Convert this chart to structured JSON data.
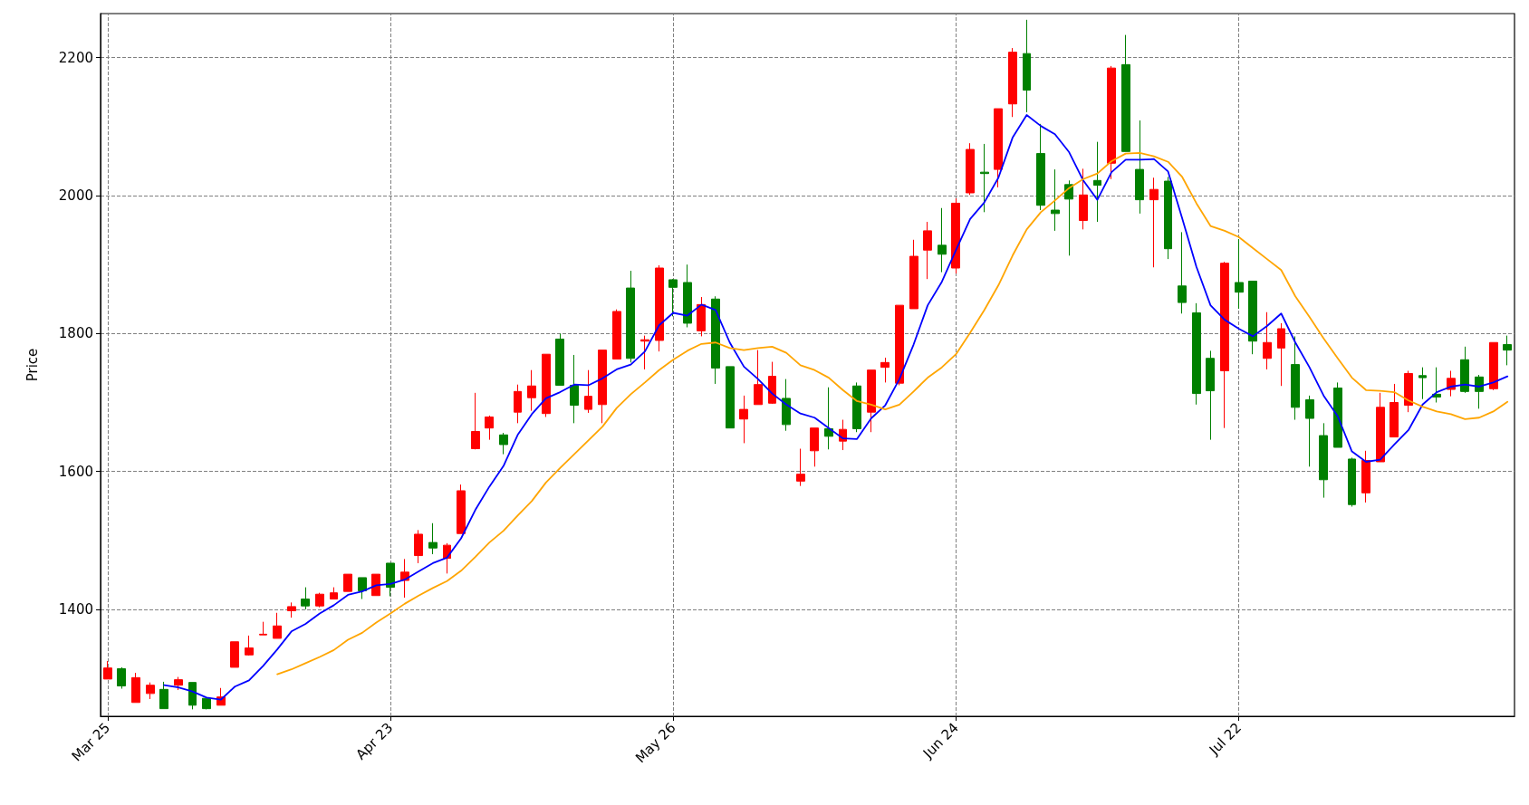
{
  "chart_data": {
    "type": "candlestick",
    "ylabel": "Price",
    "categories": [
      "Mar 25",
      null,
      null,
      null,
      null,
      null,
      null,
      null,
      null,
      null,
      null,
      null,
      null,
      null,
      null,
      null,
      null,
      null,
      null,
      null,
      "Apr 23",
      null,
      null,
      null,
      null,
      null,
      null,
      null,
      null,
      null,
      null,
      null,
      null,
      null,
      null,
      null,
      null,
      null,
      null,
      null,
      "May 26",
      null,
      null,
      null,
      null,
      null,
      null,
      null,
      null,
      null,
      null,
      null,
      null,
      null,
      null,
      null,
      null,
      null,
      null,
      null,
      "Jun 24",
      null,
      null,
      null,
      null,
      null,
      null,
      null,
      null,
      null,
      null,
      null,
      null,
      null,
      null,
      null,
      null,
      null,
      null,
      null,
      "Jul 22",
      null,
      null,
      null,
      null,
      null,
      null,
      null,
      null,
      null,
      null,
      null,
      null,
      null,
      null,
      null,
      null,
      null,
      null,
      null
    ],
    "ohlc": [
      [
        1299,
        1325,
        1299,
        1315
      ],
      [
        1314,
        1316,
        1285,
        1289
      ],
      [
        1265,
        1308,
        1265,
        1301
      ],
      [
        1278,
        1294,
        1270,
        1290
      ],
      [
        1284,
        1295,
        1256,
        1256
      ],
      [
        1290,
        1302,
        1283,
        1298
      ],
      [
        1294,
        1294,
        1255,
        1261
      ],
      [
        1271,
        1271,
        1255,
        1256
      ],
      [
        1261,
        1286,
        1261,
        1273
      ],
      [
        1316,
        1353,
        1316,
        1353
      ],
      [
        1334,
        1362,
        1333,
        1344
      ],
      [
        1363,
        1382,
        1363,
        1364
      ],
      [
        1358,
        1395,
        1358,
        1376
      ],
      [
        1398,
        1410,
        1388,
        1404
      ],
      [
        1415,
        1432,
        1400,
        1405
      ],
      [
        1405,
        1424,
        1403,
        1422
      ],
      [
        1415,
        1432,
        1415,
        1424
      ],
      [
        1426,
        1451,
        1426,
        1451
      ],
      [
        1446,
        1446,
        1415,
        1427
      ],
      [
        1420,
        1451,
        1420,
        1451
      ],
      [
        1467,
        1467,
        1419,
        1432
      ],
      [
        1442,
        1473,
        1417,
        1454
      ],
      [
        1478,
        1515,
        1467,
        1509
      ],
      [
        1497,
        1525,
        1480,
        1489
      ],
      [
        1474,
        1496,
        1452,
        1493
      ],
      [
        1510,
        1581,
        1510,
        1572
      ],
      [
        1633,
        1714,
        1632,
        1658
      ],
      [
        1663,
        1681,
        1646,
        1679
      ],
      [
        1653,
        1656,
        1625,
        1639
      ],
      [
        1686,
        1726,
        1670,
        1716
      ],
      [
        1707,
        1747,
        1688,
        1724
      ],
      [
        1684,
        1770,
        1679,
        1770
      ],
      [
        1792,
        1800,
        1725,
        1725
      ],
      [
        1725,
        1769,
        1670,
        1696
      ],
      [
        1690,
        1747,
        1685,
        1709
      ],
      [
        1697,
        1776,
        1670,
        1776
      ],
      [
        1763,
        1835,
        1763,
        1832
      ],
      [
        1866,
        1891,
        1758,
        1764
      ],
      [
        1789,
        1797,
        1748,
        1791
      ],
      [
        1790,
        1899,
        1774,
        1895
      ],
      [
        1878,
        1879,
        1825,
        1867
      ],
      [
        1874,
        1900,
        1809,
        1815
      ],
      [
        1804,
        1853,
        1796,
        1842
      ],
      [
        1850,
        1854,
        1727,
        1750
      ],
      [
        1752,
        1752,
        1663,
        1663
      ],
      [
        1676,
        1710,
        1641,
        1690
      ],
      [
        1697,
        1776,
        1697,
        1726
      ],
      [
        1699,
        1759,
        1698,
        1738
      ],
      [
        1706,
        1734,
        1659,
        1668
      ],
      [
        1586,
        1633,
        1579,
        1596
      ],
      [
        1630,
        1663,
        1607,
        1663
      ],
      [
        1662,
        1722,
        1632,
        1651
      ],
      [
        1644,
        1675,
        1631,
        1661
      ],
      [
        1724,
        1729,
        1657,
        1662
      ],
      [
        1686,
        1747,
        1657,
        1747
      ],
      [
        1751,
        1765,
        1729,
        1758
      ],
      [
        1728,
        1841,
        1725,
        1841
      ],
      [
        1836,
        1936,
        1836,
        1912
      ],
      [
        1921,
        1962,
        1879,
        1949
      ],
      [
        1928,
        1982,
        1889,
        1915
      ],
      [
        1895,
        1996,
        1887,
        1989
      ],
      [
        2004,
        2076,
        2001,
        2067
      ],
      [
        2034,
        2075,
        1976,
        2032
      ],
      [
        2038,
        2126,
        2012,
        2126
      ],
      [
        2133,
        2214,
        2114,
        2208
      ],
      [
        2206,
        2255,
        2121,
        2153
      ],
      [
        2061,
        2104,
        1979,
        1986
      ],
      [
        1979,
        2038,
        1949,
        1974
      ],
      [
        2016,
        2022,
        1913,
        1995
      ],
      [
        1964,
        2039,
        1951,
        2001
      ],
      [
        2022,
        2078,
        1962,
        2015
      ],
      [
        2047,
        2188,
        2024,
        2185
      ],
      [
        2190,
        2233,
        2064,
        2064
      ],
      [
        2038,
        2109,
        1974,
        1994
      ],
      [
        1994,
        2026,
        1896,
        2009
      ],
      [
        2021,
        2027,
        1908,
        1923
      ],
      [
        1869,
        1947,
        1829,
        1845
      ],
      [
        1830,
        1844,
        1697,
        1713
      ],
      [
        1764,
        1775,
        1646,
        1717
      ],
      [
        1746,
        1904,
        1663,
        1902
      ],
      [
        1874,
        1937,
        1836,
        1860
      ],
      [
        1876,
        1876,
        1770,
        1789
      ],
      [
        1764,
        1831,
        1748,
        1787
      ],
      [
        1779,
        1815,
        1724,
        1807
      ],
      [
        1755,
        1796,
        1675,
        1693
      ],
      [
        1704,
        1710,
        1607,
        1677
      ],
      [
        1652,
        1670,
        1562,
        1588
      ],
      [
        1721,
        1729,
        1635,
        1635
      ],
      [
        1618,
        1620,
        1549,
        1552
      ],
      [
        1569,
        1630,
        1555,
        1616
      ],
      [
        1614,
        1714,
        1614,
        1693
      ],
      [
        1650,
        1727,
        1650,
        1700
      ],
      [
        1696,
        1746,
        1686,
        1742
      ],
      [
        1739,
        1751,
        1705,
        1736
      ],
      [
        1712,
        1751,
        1700,
        1708
      ],
      [
        1719,
        1746,
        1709,
        1735
      ],
      [
        1762,
        1781,
        1714,
        1716
      ],
      [
        1737,
        1740,
        1691,
        1716
      ],
      [
        1720,
        1787,
        1718,
        1787
      ],
      [
        1784,
        1797,
        1754,
        1776
      ]
    ],
    "colors": [
      "#ff0000",
      "#008000",
      "#ff0000",
      "#ff0000",
      "#008000",
      "#ff0000",
      "#008000",
      "#008000",
      "#ff0000",
      "#ff0000",
      "#ff0000",
      "#ff0000",
      "#ff0000",
      "#ff0000",
      "#008000",
      "#ff0000",
      "#ff0000",
      "#ff0000",
      "#008000",
      "#ff0000",
      "#008000",
      "#ff0000",
      "#ff0000",
      "#008000",
      "#ff0000",
      "#ff0000",
      "#ff0000",
      "#ff0000",
      "#008000",
      "#ff0000",
      "#ff0000",
      "#ff0000",
      "#008000",
      "#008000",
      "#ff0000",
      "#ff0000",
      "#ff0000",
      "#008000",
      "#ff0000",
      "#ff0000",
      "#008000",
      "#008000",
      "#ff0000",
      "#008000",
      "#008000",
      "#ff0000",
      "#ff0000",
      "#ff0000",
      "#008000",
      "#ff0000",
      "#ff0000",
      "#008000",
      "#ff0000",
      "#008000",
      "#ff0000",
      "#ff0000",
      "#ff0000",
      "#ff0000",
      "#ff0000",
      "#008000",
      "#ff0000",
      "#ff0000",
      "#008000",
      "#ff0000",
      "#ff0000",
      "#008000",
      "#008000",
      "#008000",
      "#008000",
      "#ff0000",
      "#008000",
      "#ff0000",
      "#008000",
      "#008000",
      "#ff0000",
      "#008000",
      "#008000",
      "#008000",
      "#008000",
      "#ff0000",
      "#008000",
      "#008000",
      "#ff0000",
      "#ff0000",
      "#008000",
      "#008000",
      "#008000",
      "#008000",
      "#008000",
      "#ff0000",
      "#ff0000",
      "#ff0000",
      "#ff0000",
      "#008000",
      "#008000",
      "#ff0000",
      "#008000",
      "#008000",
      "#ff0000",
      "#008000"
    ],
    "series": [
      {
        "type": "line",
        "color": "#0000ff",
        "values": [
          null,
          null,
          null,
          null,
          1290,
          1287,
          1281,
          1272,
          1269,
          1288,
          1297,
          1318,
          1342,
          1368,
          1379,
          1394,
          1406,
          1421,
          1426,
          1435,
          1437,
          1443,
          1455,
          1467,
          1475,
          1503,
          1544,
          1578,
          1608,
          1653,
          1683,
          1706,
          1715,
          1726,
          1725,
          1735,
          1748,
          1755,
          1774,
          1812,
          1830,
          1826,
          1842,
          1834,
          1787,
          1752,
          1734,
          1713,
          1697,
          1684,
          1678,
          1663,
          1648,
          1647,
          1677,
          1696,
          1734,
          1784,
          1841,
          1875,
          1921,
          1966,
          1990,
          2026,
          2084,
          2117,
          2101,
          2089,
          2063,
          2022,
          1994,
          2034,
          2052,
          2052,
          2053,
          2035,
          1967,
          1897,
          1841,
          1820,
          1807,
          1796,
          1811,
          1829,
          1787,
          1751,
          1710,
          1680,
          1629,
          1614,
          1617,
          1639,
          1660,
          1697,
          1715,
          1723,
          1726,
          1723,
          1729,
          1738
        ]
      },
      {
        "type": "line",
        "color": "#ffa500",
        "values": [
          null,
          null,
          null,
          null,
          null,
          null,
          null,
          null,
          null,
          null,
          null,
          null,
          1306,
          1313,
          1322,
          1331,
          1341,
          1356,
          1366,
          1381,
          1394,
          1408,
          1420,
          1431,
          1441,
          1456,
          1476,
          1497,
          1514,
          1536,
          1557,
          1584,
          1605,
          1625,
          1645,
          1665,
          1692,
          1712,
          1729,
          1747,
          1762,
          1775,
          1785,
          1787,
          1779,
          1776,
          1779,
          1781,
          1772,
          1754,
          1747,
          1736,
          1718,
          1702,
          1697,
          1690,
          1697,
          1716,
          1736,
          1751,
          1770,
          1801,
          1834,
          1870,
          1913,
          1951,
          1976,
          1993,
          2011,
          2024,
          2032,
          2050,
          2061,
          2062,
          2057,
          2049,
          2027,
          1989,
          1956,
          1949,
          1940,
          1924,
          1908,
          1892,
          1854,
          1824,
          1793,
          1764,
          1736,
          1718,
          1717,
          1715,
          1703,
          1694,
          1687,
          1683,
          1676,
          1678,
          1687,
          1701
        ]
      }
    ],
    "ylim": [
      1245,
      2264
    ],
    "yticks": [
      1400,
      1600,
      1800,
      2000,
      2200
    ],
    "grid": true,
    "line_style": "solid"
  }
}
